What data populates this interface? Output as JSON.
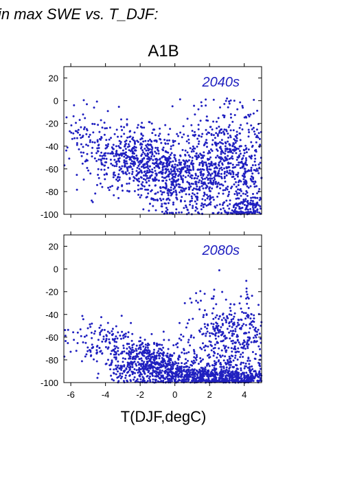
{
  "figure": {
    "header": "in max SWE vs. T_DJF:",
    "title": "A1B",
    "xlabel": "T(DJF,degC)"
  },
  "chart_data": [
    {
      "type": "scatter",
      "panel_label": "2040s",
      "xlim": [
        -6.4,
        5.0
      ],
      "ylim": [
        -100,
        30
      ],
      "xticks": [
        -6,
        -4,
        -2,
        0,
        2,
        4
      ],
      "xtick_labels": [
        "-6",
        "-4",
        "-2",
        "0",
        "2",
        "4"
      ],
      "yticks": [
        20,
        0,
        -20,
        -40,
        -60,
        -80,
        -100
      ],
      "ytick_labels": [
        "20",
        "0",
        "-20",
        "-40",
        "-60",
        "-80",
        "-100"
      ],
      "grid": false,
      "point_color": "#2020c0",
      "approx_point_count": 1800,
      "clusters": [
        {
          "x_center": -2.0,
          "y_center": -52,
          "x_spread": 1.4,
          "y_spread": 13,
          "n": 500
        },
        {
          "x_center": 0.3,
          "y_center": -70,
          "x_spread": 1.3,
          "y_spread": 15,
          "n": 420
        },
        {
          "x_center": 3.2,
          "y_center": -55,
          "x_spread": 1.4,
          "y_spread": 26,
          "n": 700
        },
        {
          "x_center": -4.5,
          "y_center": -35,
          "x_spread": 1.1,
          "y_spread": 14,
          "n": 120
        },
        {
          "x_center": 4.3,
          "y_center": -95,
          "x_spread": 0.7,
          "y_spread": 5,
          "n": 120
        }
      ]
    },
    {
      "type": "scatter",
      "panel_label": "2080s",
      "xlim": [
        -6.4,
        5.0
      ],
      "ylim": [
        -100,
        30
      ],
      "xticks": [
        -6,
        -4,
        -2,
        0,
        2,
        4
      ],
      "xtick_labels": [
        "-6",
        "-4",
        "-2",
        "0",
        "2",
        "4"
      ],
      "yticks": [
        20,
        0,
        -20,
        -40,
        -60,
        -80,
        -100
      ],
      "ytick_labels": [
        "20",
        "0",
        "-20",
        "-40",
        "-60",
        "-80",
        "-100"
      ],
      "grid": false,
      "point_color": "#2020c0",
      "approx_point_count": 1900,
      "clusters": [
        {
          "x_center": -1.5,
          "y_center": -82,
          "x_spread": 1.2,
          "y_spread": 9,
          "n": 520
        },
        {
          "x_center": 1.5,
          "y_center": -94,
          "x_spread": 1.8,
          "y_spread": 5,
          "n": 600
        },
        {
          "x_center": 3.3,
          "y_center": -65,
          "x_spread": 1.3,
          "y_spread": 22,
          "n": 520
        },
        {
          "x_center": -4.2,
          "y_center": -65,
          "x_spread": 1.3,
          "y_spread": 10,
          "n": 140
        },
        {
          "x_center": 4.2,
          "y_center": -97,
          "x_spread": 0.8,
          "y_spread": 3,
          "n": 120
        }
      ]
    }
  ]
}
